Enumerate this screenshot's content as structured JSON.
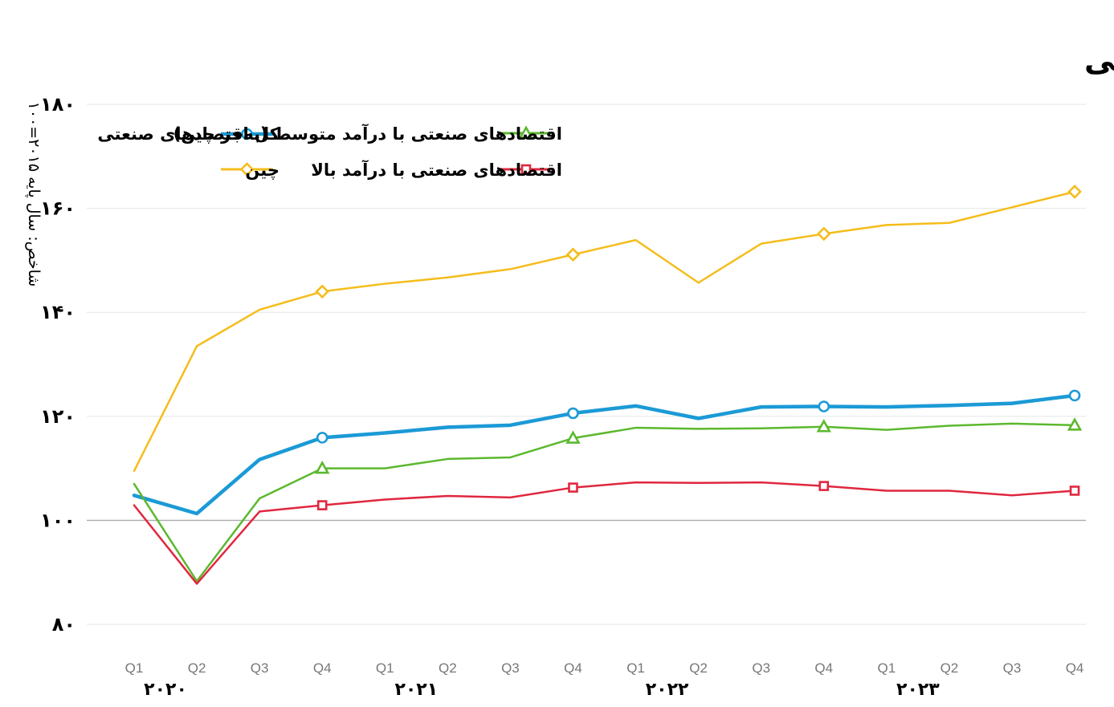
{
  "chart_data": {
    "type": "line",
    "title": "روند حرکت شاخص تولیدات صنعتی به تفکیک گروه‌های مختلف صنعتی",
    "ylabel": "شاخص: سال پایه ۲۰۱۵=۱۰۰",
    "xlabel": "",
    "ylim": [
      80,
      180
    ],
    "yticks": [
      80,
      100,
      120,
      140,
      160,
      180
    ],
    "ytick_labels": [
      "۸۰",
      "۱۰۰",
      "۱۲۰",
      "۱۴۰",
      "۱۶۰",
      "۱۸۰"
    ],
    "baseline": 100,
    "categories": [
      "Q1",
      "Q2",
      "Q3",
      "Q4",
      "Q1",
      "Q2",
      "Q3",
      "Q4",
      "Q1",
      "Q2",
      "Q3",
      "Q4",
      "Q1",
      "Q2",
      "Q3",
      "Q4"
    ],
    "years": [
      {
        "label": "۲۰۲۰",
        "start": 0,
        "end": 1
      },
      {
        "label": "۲۰۲۱",
        "start": 4,
        "end": 5
      },
      {
        "label": "۲۰۲۲",
        "start": 8,
        "end": 9
      },
      {
        "label": "۲۰۲۳",
        "start": 12,
        "end": 13
      }
    ],
    "legend_position": "top",
    "series": [
      {
        "name": "چین",
        "color": "#F5BD1B",
        "marker": "diamond",
        "width": 2.5,
        "values": [
          109.5,
          133.5,
          140.5,
          144.0,
          145.5,
          146.7,
          148.3,
          151.1,
          153.9,
          145.7,
          153.2,
          155.1,
          156.8,
          157.2,
          160.2,
          163.2
        ]
      },
      {
        "name": "کل اقتصادهای صنعتی",
        "color": "#1B9AD6",
        "marker": "circle",
        "width": 4.5,
        "values": [
          104.8,
          101.3,
          111.7,
          115.9,
          116.8,
          117.9,
          118.3,
          120.6,
          122.0,
          119.6,
          121.8,
          121.9,
          121.8,
          122.1,
          122.5,
          124.0
        ]
      },
      {
        "name": "اقتصادهای صنعتی با درآمد متوسط (به‌جز چین)",
        "color": "#5CB82E",
        "marker": "triangle",
        "width": 2.5,
        "values": [
          107.0,
          88.3,
          104.2,
          110.0,
          110.0,
          111.8,
          112.1,
          115.8,
          117.8,
          117.6,
          117.7,
          118.0,
          117.4,
          118.2,
          118.6,
          118.3
        ]
      },
      {
        "name": "اقتصادهای صنعتی با درآمد بالا",
        "color": "#E0273F",
        "marker": "square",
        "width": 2.5,
        "values": [
          102.9,
          87.8,
          101.7,
          102.9,
          104.0,
          104.7,
          104.4,
          106.3,
          107.3,
          107.2,
          107.3,
          106.6,
          105.7,
          105.7,
          104.8,
          105.7
        ]
      }
    ]
  }
}
